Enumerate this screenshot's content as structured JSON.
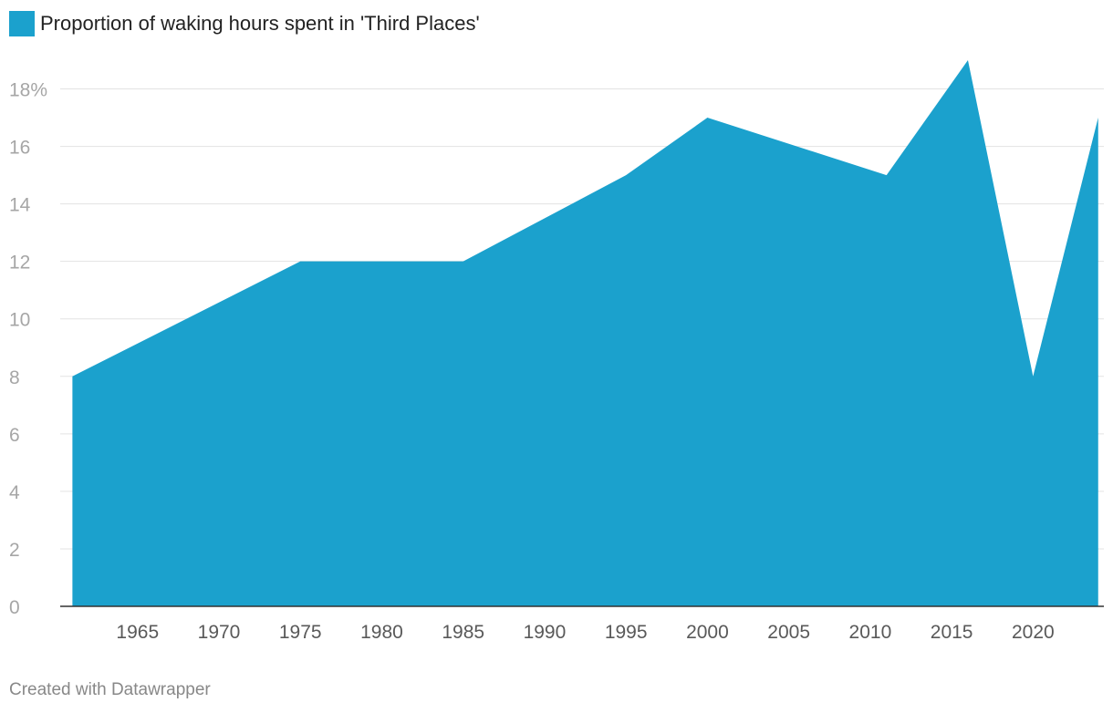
{
  "chart_data": {
    "type": "area",
    "title": "",
    "xlabel": "",
    "ylabel": "",
    "legend": {
      "label": "Proportion of waking hours spent in 'Third Places'",
      "placement": "top-left"
    },
    "x": [
      1961,
      1975,
      1985,
      1995,
      2000,
      2011,
      2016,
      2020,
      2024
    ],
    "series": [
      {
        "name": "Proportion of waking hours spent in 'Third Places'",
        "values": [
          8,
          12,
          12,
          15,
          17,
          15,
          19,
          8,
          17
        ]
      }
    ],
    "xlim": [
      1960,
      2025
    ],
    "ylim": [
      0,
      19
    ],
    "x_ticks": [
      1965,
      1970,
      1975,
      1980,
      1985,
      1990,
      1995,
      2000,
      2005,
      2010,
      2015,
      2020
    ],
    "x_tick_labels": [
      "1965",
      "1970",
      "1975",
      "1980",
      "1985",
      "1990",
      "1995",
      "2000",
      "2005",
      "2010",
      "2015",
      "2020"
    ],
    "y_ticks": [
      0,
      2,
      4,
      6,
      8,
      10,
      12,
      14,
      16,
      18
    ],
    "y_tick_labels": [
      "0",
      "2",
      "4",
      "6",
      "8",
      "10",
      "12",
      "14",
      "16",
      "18%"
    ],
    "grid": true,
    "color": "#1ba1cd"
  },
  "footer": {
    "credit": "Created with Datawrapper"
  }
}
